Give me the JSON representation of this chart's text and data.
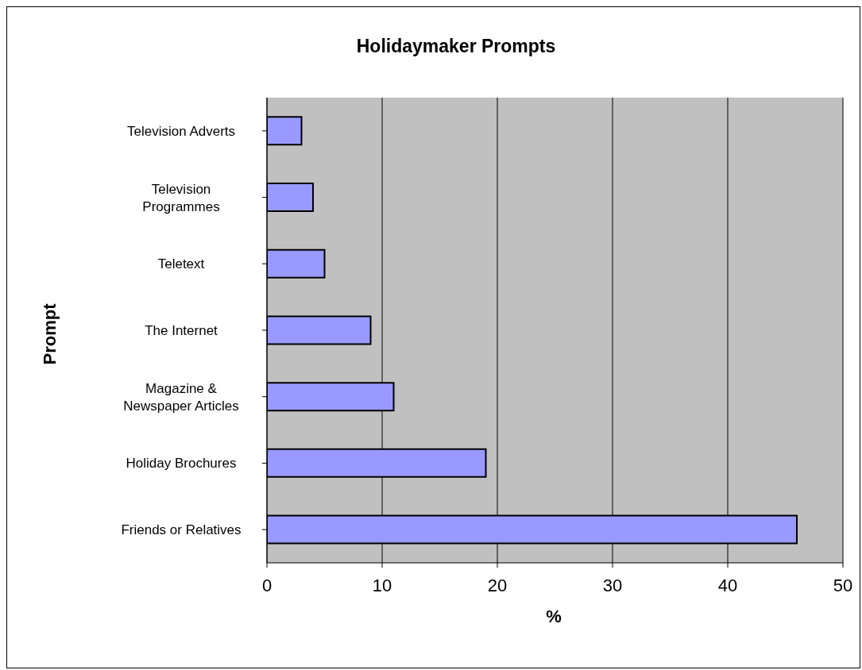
{
  "chart_data": {
    "type": "bar",
    "orientation": "horizontal",
    "title": "Holidaymaker Prompts",
    "xlabel": "%",
    "ylabel": "Prompt",
    "categories": [
      "Television Adverts",
      "Television Programmes",
      "Teletext",
      "The Internet",
      "Magazine & Newspaper Articles",
      "Holiday Brochures",
      "Friends or Relatives"
    ],
    "values": [
      3,
      4,
      5,
      9,
      11,
      19,
      46
    ],
    "color": "#9999ff",
    "xlim": [
      0,
      50
    ],
    "xticks": [
      0,
      10,
      20,
      30,
      40,
      50
    ],
    "grid": "x",
    "legend": false
  }
}
